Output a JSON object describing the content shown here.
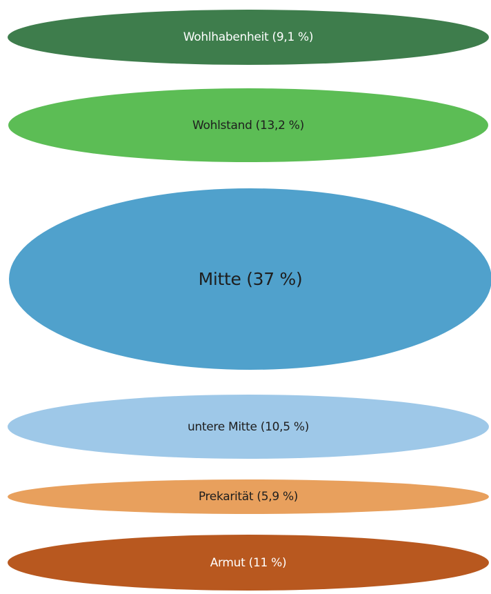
{
  "layers": [
    {
      "label": "Wohlhabenheit (9,1 %)",
      "fill": "#3e7d4c",
      "text_color": "#ffffff"
    },
    {
      "label": "Wohlstand (13,2 %)",
      "fill": "#5cbd55",
      "text_color": "#1e1e1e"
    },
    {
      "label": "Mitte (37 %)",
      "fill": "#50a1cc",
      "text_color": "#1e1e1e"
    },
    {
      "label": "untere Mitte (10,5 %)",
      "fill": "#9ec8e8",
      "text_color": "#1e1e1e"
    },
    {
      "label": "Prekarität (5,9 %)",
      "fill": "#e8a05d",
      "text_color": "#1e1e1e"
    },
    {
      "label": "Armut (11 %)",
      "fill": "#b8581f",
      "text_color": "#ffffff"
    }
  ]
}
